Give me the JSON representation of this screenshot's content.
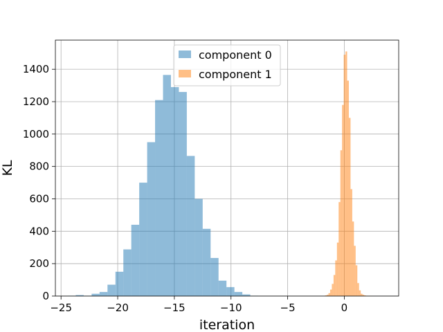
{
  "chart_data": {
    "type": "bar",
    "title": "",
    "xlabel": "iteration",
    "ylabel": "KL",
    "xlim": [
      -25.5,
      4.8
    ],
    "ylim": [
      0,
      1580
    ],
    "xticks": [
      -25,
      -20,
      -15,
      -10,
      -5,
      0
    ],
    "yticks": [
      0,
      200,
      400,
      600,
      800,
      1000,
      1200,
      1400
    ],
    "grid": true,
    "legend": "upper-center",
    "series": [
      {
        "name": "component 0",
        "color": "#1f77b4",
        "opacity": 0.5,
        "bin_edges": [
          -24.4,
          -23.7,
          -23.0,
          -22.3,
          -21.6,
          -20.9,
          -20.2,
          -19.5,
          -18.8,
          -18.1,
          -17.4,
          -16.7,
          -16.0,
          -15.3,
          -14.6,
          -13.9,
          -13.2,
          -12.5,
          -11.8,
          -11.1,
          -10.4,
          -9.7,
          -9.0,
          -8.3,
          -7.6
        ],
        "counts": [
          2,
          6,
          2,
          14,
          25,
          70,
          150,
          288,
          440,
          700,
          950,
          1210,
          1365,
          1290,
          1260,
          865,
          600,
          415,
          235,
          95,
          55,
          25,
          10,
          2
        ]
      },
      {
        "name": "component 1",
        "color": "#ff7f0e",
        "opacity": 0.5,
        "bin_edges": [
          -1.7,
          -1.55,
          -1.4,
          -1.25,
          -1.1,
          -0.95,
          -0.8,
          -0.65,
          -0.5,
          -0.35,
          -0.2,
          -0.05,
          0.1,
          0.25,
          0.4,
          0.55,
          0.7,
          0.85,
          1.0,
          1.15,
          1.3,
          1.45,
          1.6,
          1.75,
          1.9,
          2.05,
          2.2,
          2.35,
          2.5
        ],
        "counts": [
          4,
          8,
          18,
          40,
          75,
          130,
          220,
          330,
          580,
          900,
          1180,
          1490,
          1510,
          1330,
          1100,
          660,
          460,
          310,
          190,
          80,
          35,
          14,
          8,
          4,
          2,
          1,
          1,
          1
        ]
      }
    ]
  }
}
